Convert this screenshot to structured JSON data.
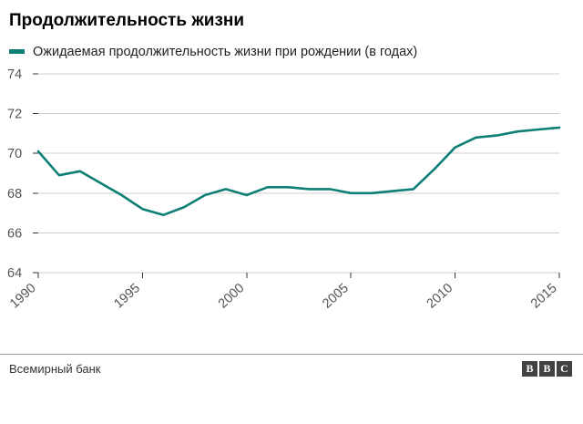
{
  "title": "Продолжительность жизни",
  "source": "Всемирный банк",
  "logo": {
    "letters": [
      "B",
      "B",
      "C"
    ]
  },
  "colors": {
    "line": "#0e7f74",
    "grid": "#cccccc",
    "tick": "#333333",
    "tick_text": "#555555"
  },
  "chart_data": {
    "type": "line",
    "x": [
      1990,
      1991,
      1992,
      1993,
      1994,
      1995,
      1996,
      1997,
      1998,
      1999,
      2000,
      2001,
      2002,
      2003,
      2004,
      2005,
      2006,
      2007,
      2008,
      2009,
      2010,
      2011,
      2012,
      2013,
      2014,
      2015
    ],
    "series": [
      {
        "name": "Ожидаемая продолжительность жизни при рождении (в годах)",
        "values": [
          70.1,
          68.9,
          69.1,
          68.5,
          67.9,
          67.2,
          66.9,
          67.3,
          67.9,
          68.2,
          67.9,
          68.3,
          68.3,
          68.2,
          68.2,
          68.0,
          68.0,
          68.1,
          68.2,
          69.2,
          70.3,
          70.8,
          70.9,
          71.1,
          71.2,
          71.3
        ]
      }
    ],
    "title": "Продолжительность жизни",
    "xlabel": "",
    "ylabel": "",
    "ylim": [
      64,
      74
    ],
    "yticks": [
      64,
      66,
      68,
      70,
      72,
      74
    ],
    "xticks": [
      1990,
      1995,
      2000,
      2005,
      2010,
      2015
    ],
    "grid": true,
    "legend_position": "top"
  }
}
